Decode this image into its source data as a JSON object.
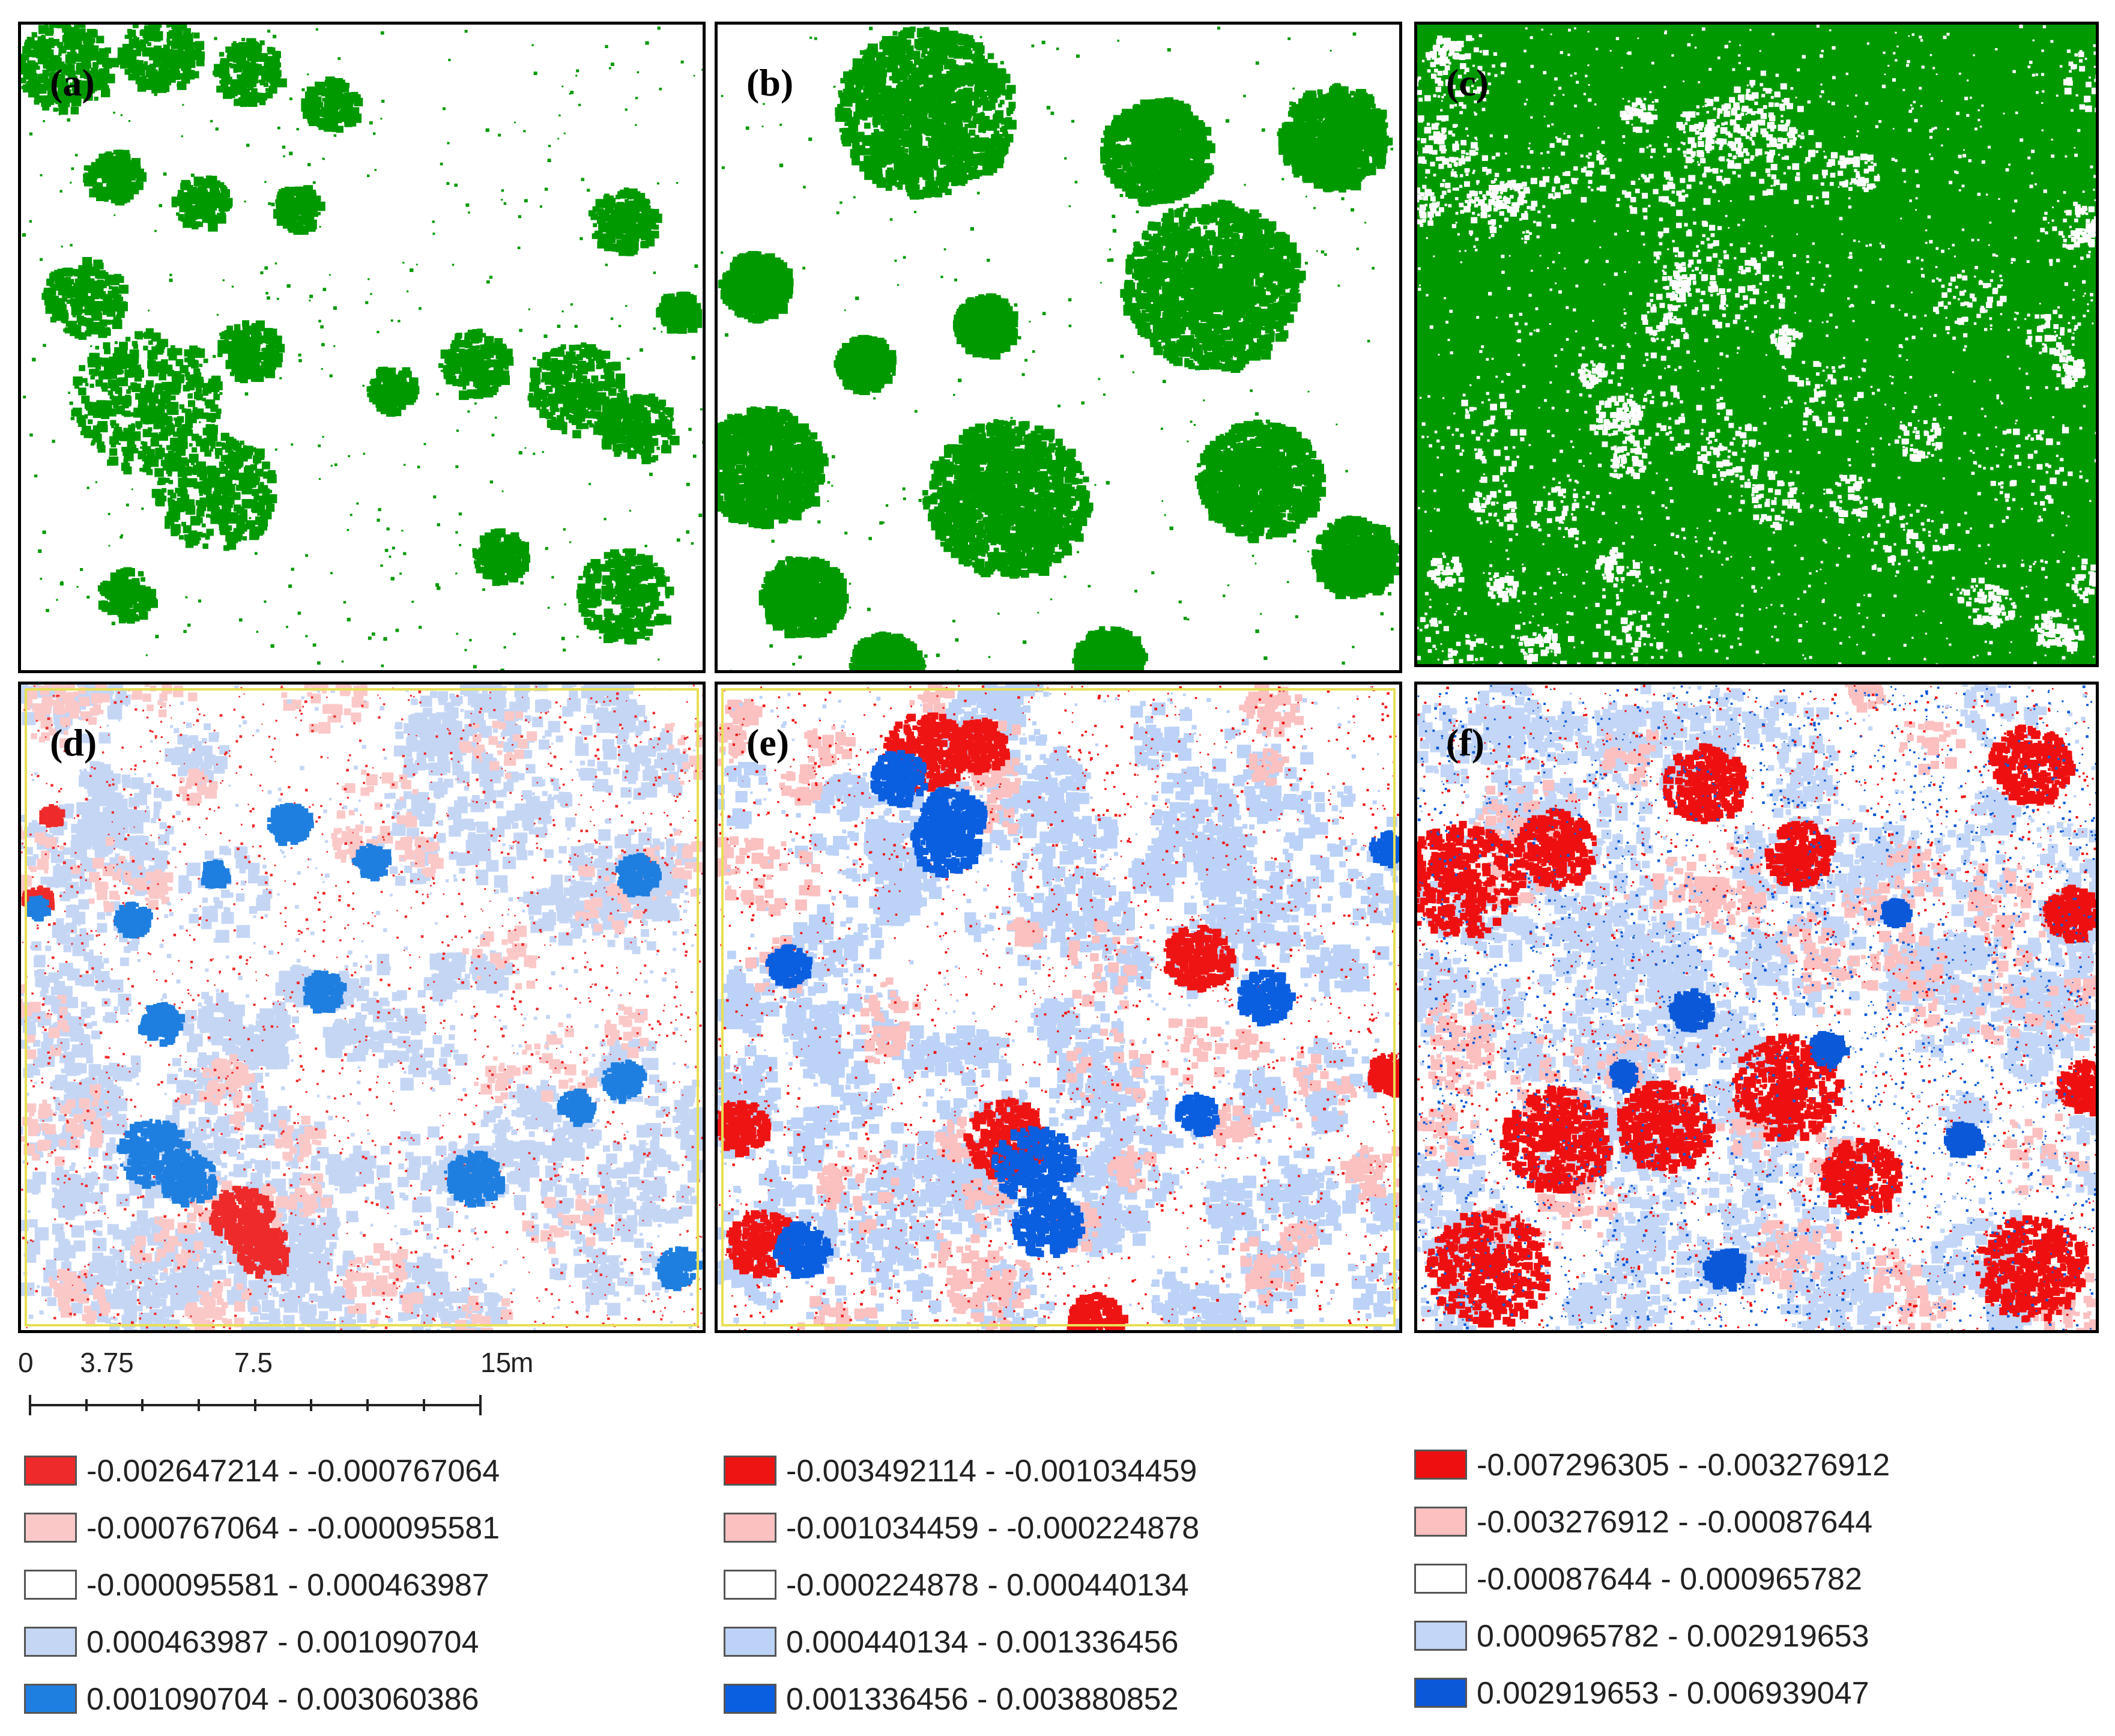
{
  "panels": [
    {
      "id": "a",
      "label": "(a)",
      "kind": "canopy"
    },
    {
      "id": "b",
      "label": "(b)",
      "kind": "canopy"
    },
    {
      "id": "c",
      "label": "(c)",
      "kind": "canopy"
    },
    {
      "id": "d",
      "label": "(d)",
      "kind": "residual"
    },
    {
      "id": "e",
      "label": "(e)",
      "kind": "residual"
    },
    {
      "id": "f",
      "label": "(f)",
      "kind": "residual"
    }
  ],
  "colors": {
    "canopy_green": "#009900",
    "class_colors": [
      "#ee2a2a",
      "#fbc8c8",
      "#ffffff",
      "#c5d6f5",
      "#1f7fe0"
    ],
    "class_colors_e": [
      "#ef1414",
      "#fbc0c0",
      "#ffffff",
      "#bcd2f7",
      "#0a5ee0"
    ],
    "class_colors_f": [
      "#ee1010",
      "#fcc0c0",
      "#ffffff",
      "#c3d6f7",
      "#0b58d8"
    ]
  },
  "scale_bar": {
    "ticks": [
      "0",
      "3.75",
      "7.5",
      "15"
    ],
    "unit": "m"
  },
  "legends": [
    {
      "id": "d",
      "items": [
        "-0.002647214 - -0.000767064",
        "-0.000767064 - -0.000095581",
        "-0.000095581 - 0.000463987",
        "0.000463987 - 0.001090704",
        "0.001090704 - 0.003060386"
      ]
    },
    {
      "id": "e",
      "items": [
        "-0.003492114 - -0.001034459",
        "-0.001034459 - -0.000224878",
        "-0.000224878 - 0.000440134",
        "0.000440134 - 0.001336456",
        "0.001336456 - 0.003880852"
      ]
    },
    {
      "id": "f",
      "items": [
        "-0.007296305 - -0.003276912",
        "-0.003276912 - -0.00087644",
        "-0.00087644 - 0.000965782",
        "0.000965782 - 0.002919653",
        "0.002919653 - 0.006939047"
      ]
    }
  ]
}
